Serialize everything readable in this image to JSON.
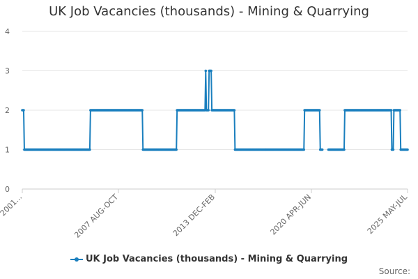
{
  "chart_data": {
    "type": "line",
    "title": "UK Job Vacancies (thousands) - Mining & Quarrying",
    "xlabel": "",
    "ylabel": "",
    "ylim": [
      0,
      4
    ],
    "yticks": [
      0,
      1,
      2,
      3,
      4
    ],
    "xtick_labels": [
      "2001...",
      "2007 AUG-OCT",
      "2013 DEC-FEB",
      "2020 APR-JUN",
      "2025 MAY-JUL"
    ],
    "grid": true,
    "legend_position": "bottom",
    "color": "#1a7fbe",
    "series": [
      {
        "name": "UK Job Vacancies (thousands) - Mining & Quarrying",
        "values": [
          2,
          2,
          2,
          1,
          1,
          1,
          1,
          1,
          1,
          1,
          1,
          1,
          1,
          1,
          1,
          1,
          1,
          1,
          1,
          1,
          1,
          1,
          1,
          1,
          1,
          1,
          1,
          1,
          1,
          1,
          1,
          1,
          1,
          1,
          1,
          1,
          1,
          1,
          1,
          1,
          1,
          1,
          1,
          1,
          1,
          1,
          1,
          1,
          1,
          1,
          1,
          1,
          1,
          1,
          1,
          1,
          1,
          1,
          1,
          1,
          1,
          1,
          1,
          1,
          1,
          1,
          1,
          1,
          1,
          1,
          1,
          1,
          1,
          1,
          1,
          1,
          1,
          1,
          1,
          1,
          1,
          1,
          1,
          1,
          1,
          1,
          1,
          1,
          1,
          1,
          1,
          1,
          1,
          1,
          1,
          1,
          1,
          1,
          1,
          1,
          2,
          2,
          2,
          2,
          2,
          2,
          2,
          2,
          2,
          2,
          2,
          2,
          2,
          2,
          2,
          2,
          2,
          2,
          2,
          2,
          2,
          2,
          2,
          2,
          2,
          2,
          2,
          2,
          2,
          2,
          2,
          2,
          2,
          2,
          2,
          2,
          2,
          2,
          2,
          2,
          2,
          2,
          2,
          2,
          2,
          2,
          2,
          2,
          2,
          2,
          2,
          2,
          2,
          2,
          2,
          2,
          2,
          2,
          2,
          2,
          2,
          2,
          2,
          2,
          2,
          2,
          2,
          2,
          2,
          2,
          2,
          2,
          2,
          2,
          2,
          2,
          2,
          1,
          1,
          1,
          1,
          1,
          1,
          1,
          1,
          1,
          1,
          1,
          1,
          1,
          1,
          1,
          1,
          1,
          1,
          1,
          1,
          1,
          1,
          1,
          1,
          1,
          1,
          1,
          1,
          1,
          1,
          1,
          1,
          1,
          1,
          1,
          1,
          1,
          1,
          1,
          1,
          1,
          1,
          1,
          1,
          1,
          1,
          1,
          1,
          1,
          1,
          2,
          2,
          2,
          2,
          2,
          2,
          2,
          2,
          2,
          2,
          2,
          2,
          2,
          2,
          2,
          2,
          2,
          2,
          2,
          2,
          2,
          2,
          2,
          2,
          2,
          2,
          2,
          2,
          2,
          2,
          2,
          2,
          2,
          2,
          2,
          2,
          2,
          2,
          2,
          2,
          2,
          2,
          3,
          2,
          2,
          2,
          2,
          3,
          3,
          3,
          3,
          2,
          2,
          2,
          2,
          2,
          2,
          2,
          2,
          2,
          2,
          2,
          2,
          2,
          2,
          2,
          2,
          2,
          2,
          2,
          2,
          2,
          2,
          2,
          2,
          2,
          2,
          2,
          2,
          2,
          2,
          2,
          2,
          2,
          2,
          1,
          1,
          1,
          1,
          1,
          1,
          1,
          1,
          1,
          1,
          1,
          1,
          1,
          1,
          1,
          1,
          1,
          1,
          1,
          1,
          1,
          1,
          1,
          1,
          1,
          1,
          1,
          1,
          1,
          1,
          1,
          1,
          1,
          1,
          1,
          1,
          1,
          1,
          1,
          1,
          1,
          1,
          1,
          1,
          1,
          1,
          1,
          1,
          1,
          1,
          1,
          1,
          1,
          1,
          1,
          1,
          1,
          1,
          1,
          1,
          1,
          1,
          1,
          1,
          1,
          1,
          1,
          1,
          1,
          1,
          1,
          1,
          1,
          1,
          1,
          1,
          1,
          1,
          1,
          1,
          1,
          1,
          1,
          1,
          1,
          1,
          1,
          1,
          1,
          1,
          1,
          1,
          1,
          1,
          1,
          1,
          1,
          1,
          1,
          1,
          1,
          1,
          2,
          2,
          2,
          2,
          2,
          2,
          2,
          2,
          2,
          2,
          2,
          2,
          2,
          2,
          2,
          2,
          2,
          2,
          2,
          2,
          2,
          2,
          2,
          1,
          1,
          1,
          1,
          null,
          null,
          null,
          null,
          null,
          null,
          null,
          null,
          1,
          1,
          1,
          1,
          1,
          1,
          1,
          1,
          1,
          1,
          1,
          1,
          1,
          1,
          1,
          1,
          1,
          1,
          1,
          1,
          1,
          1,
          1,
          1,
          2,
          2,
          2,
          2,
          2,
          2,
          2,
          2,
          2,
          2,
          2,
          2,
          2,
          2,
          2,
          2,
          2,
          2,
          2,
          2,
          2,
          2,
          2,
          2,
          2,
          2,
          2,
          2,
          2,
          2,
          2,
          2,
          2,
          2,
          2,
          2,
          2,
          2,
          2,
          2,
          2,
          2,
          2,
          2,
          2,
          2,
          2,
          2,
          2,
          2,
          2,
          2,
          2,
          2,
          2,
          2,
          2,
          2,
          2,
          2,
          2,
          2,
          2,
          2,
          2,
          2,
          2,
          2,
          2,
          1,
          1,
          1,
          2,
          2,
          2,
          2,
          2,
          2,
          2,
          2,
          2,
          2,
          1,
          1,
          1,
          1,
          1,
          1,
          1,
          1,
          1,
          1,
          1
        ]
      }
    ]
  },
  "source_label": "Source:"
}
